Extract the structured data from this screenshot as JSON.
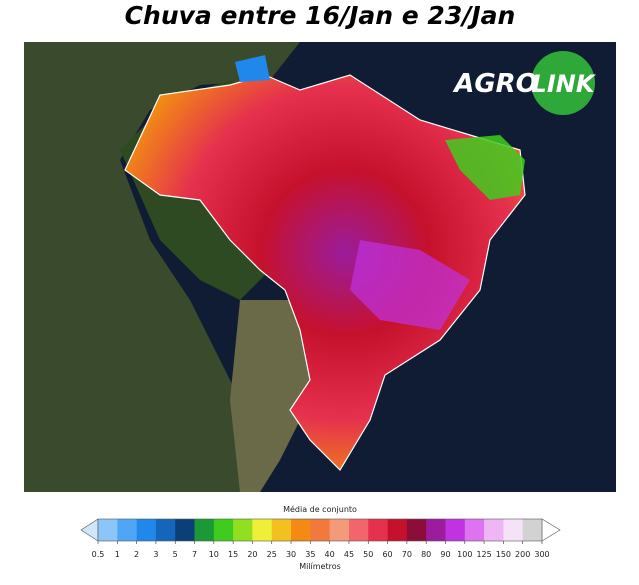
{
  "title": "Chuva entre 16/Jan e 23/Jan",
  "logo": {
    "left": "AGRO",
    "right": "LINK"
  },
  "colorbar": {
    "title": "Média de conjunto",
    "unit_label": "Milímetros",
    "ticks": [
      0.5,
      1,
      2,
      3,
      5,
      7,
      10,
      15,
      20,
      25,
      30,
      35,
      40,
      45,
      50,
      60,
      70,
      80,
      90,
      100,
      125,
      150,
      200,
      300
    ],
    "colors": [
      "#8cc6f8",
      "#4ea6f4",
      "#1f88ea",
      "#1466bb",
      "#0b3f78",
      "#1a9a36",
      "#3fcc1e",
      "#92de20",
      "#eef038",
      "#f3c11f",
      "#f28a14",
      "#f2793c",
      "#f59a78",
      "#f2656c",
      "#e5304e",
      "#c6112d",
      "#8c0c3a",
      "#9b1c9c",
      "#c132e0",
      "#df72f0",
      "#eeb6f4",
      "#f6e2f8",
      "#d2d2d2"
    ],
    "under_color": "#cfe6fb",
    "over_color": "#ffffff"
  }
}
